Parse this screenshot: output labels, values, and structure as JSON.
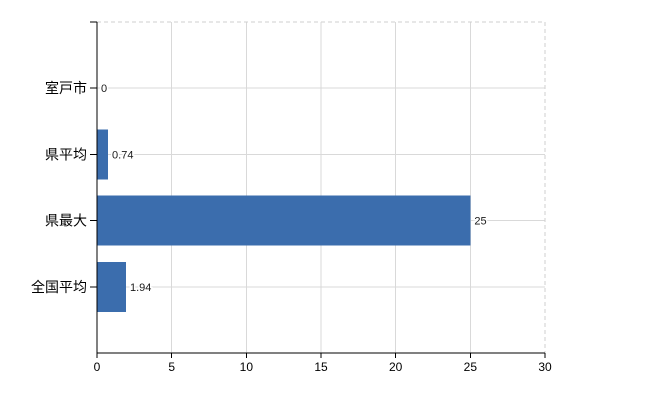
{
  "chart_data": {
    "type": "bar",
    "orientation": "horizontal",
    "title": "",
    "categories": [
      "室戸市",
      "県平均",
      "県最大",
      "全国平均"
    ],
    "values": [
      0,
      0.74,
      25,
      1.94
    ],
    "value_labels": [
      "0",
      "0.74",
      "25",
      "1.94"
    ],
    "x_ticks": [
      "0",
      "5",
      "10",
      "15",
      "20",
      "25",
      "30"
    ],
    "x_tick_values": [
      0,
      5,
      10,
      15,
      20,
      25,
      30
    ],
    "xlim": [
      0,
      30
    ],
    "xlabel": "",
    "ylabel": "",
    "grid": true,
    "legend": "none",
    "colors": {
      "bar": "#3b6dad",
      "axis": "#000000",
      "gridline": "#d9d9d9",
      "border_dashed": "#cfcfcf",
      "value_label": "#1a1a1a",
      "tick_label": "#000000",
      "background": "#ffffff"
    }
  }
}
